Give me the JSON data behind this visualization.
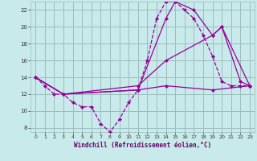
{
  "xlabel": "Windchill (Refroidissement éolien,°C)",
  "background_color": "#c8eaea",
  "grid_color": "#9bbdbd",
  "line_color": "#990099",
  "xlim": [
    -0.5,
    23.5
  ],
  "ylim": [
    7.5,
    23.0
  ],
  "yticks": [
    8,
    10,
    12,
    14,
    16,
    18,
    20,
    22
  ],
  "xticks": [
    0,
    1,
    2,
    3,
    4,
    5,
    6,
    7,
    8,
    9,
    10,
    11,
    12,
    13,
    14,
    15,
    16,
    17,
    18,
    19,
    20,
    21,
    22,
    23
  ],
  "series": {
    "line1_x": [
      0,
      1,
      2,
      3,
      4,
      5,
      6,
      7,
      8,
      9,
      10,
      11,
      12,
      13,
      14,
      15,
      16,
      17,
      18,
      19,
      20,
      21,
      22,
      23
    ],
    "line1_y": [
      14,
      13,
      12,
      12,
      11,
      10.5,
      10.5,
      8.5,
      7.5,
      9,
      11,
      12.5,
      16,
      21,
      23,
      23,
      22,
      21,
      19,
      16.5,
      13.5,
      13,
      13,
      13
    ],
    "line2_x": [
      0,
      3,
      11,
      14,
      15,
      17,
      19,
      20,
      22,
      23
    ],
    "line2_y": [
      14,
      12,
      12.5,
      21,
      23,
      22,
      19,
      20,
      13.5,
      13
    ],
    "line3_x": [
      0,
      3,
      11,
      14,
      19,
      20,
      23
    ],
    "line3_y": [
      14,
      12,
      13,
      16,
      19,
      20,
      13
    ],
    "line4_x": [
      0,
      3,
      11,
      14,
      19,
      23
    ],
    "line4_y": [
      14,
      12,
      12.5,
      13,
      12.5,
      13
    ]
  }
}
